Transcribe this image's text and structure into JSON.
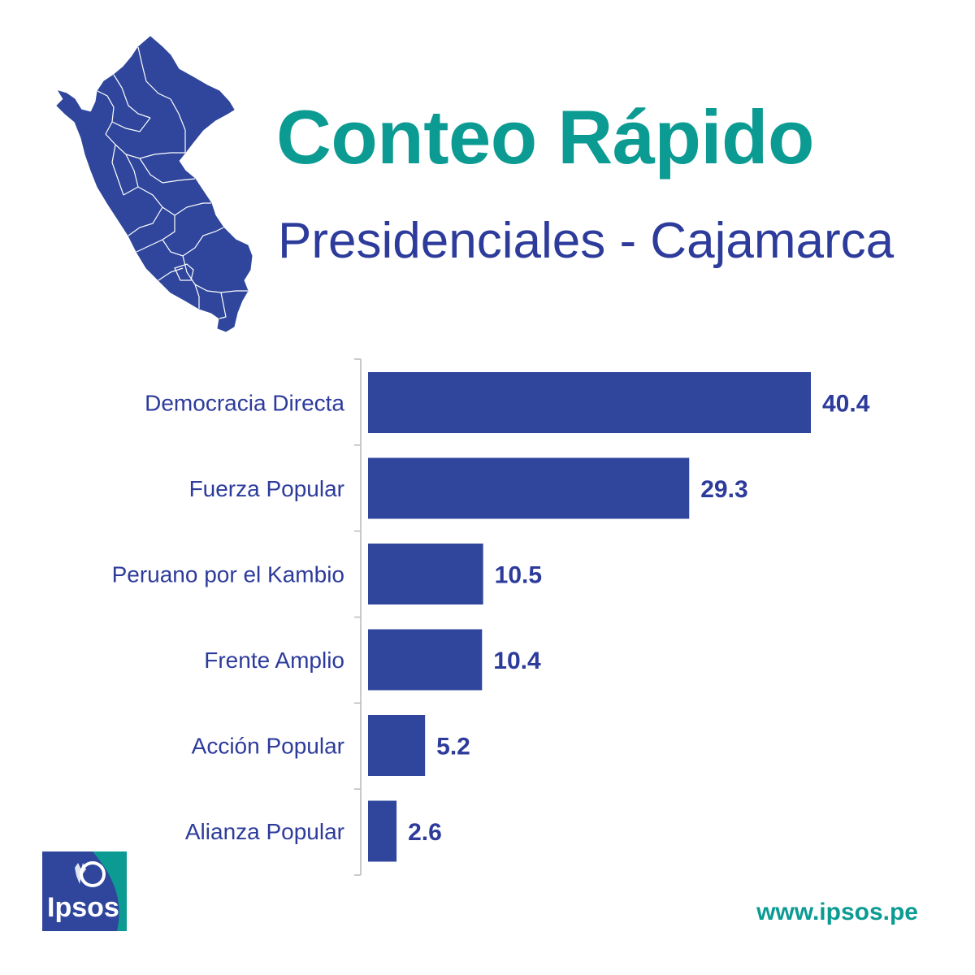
{
  "header": {
    "title": "Conteo Rápido",
    "subtitle": "Presidenciales - Cajamarca"
  },
  "colors": {
    "bar": "#2f469c",
    "title": "#0b9b92",
    "subtitle": "#2d3b9b",
    "label": "#2d3b9b",
    "value": "#2d3b9b",
    "map": "#2f469c",
    "logo_blue": "#2f469c",
    "logo_teal": "#0b9b92"
  },
  "chart_data": {
    "type": "bar",
    "orientation": "horizontal",
    "categories": [
      "Democracia Directa",
      "Fuerza Popular",
      "Peruano por el Kambio",
      "Frente Amplio",
      "Acción Popular",
      "Alianza Popular"
    ],
    "values": [
      40.4,
      29.3,
      10.5,
      10.4,
      5.2,
      2.6
    ],
    "value_labels": [
      "40.4",
      "29.3",
      "10.5",
      "10.4",
      "5.2",
      "2.6"
    ],
    "xlim": [
      0,
      40.4
    ],
    "grid": false,
    "legend": "none"
  },
  "footer": {
    "logo_text": "Ipsos",
    "url": "www.ipsos.pe"
  },
  "icons": {
    "map": "peru-map-icon",
    "logo": "ipsos-logo-icon"
  }
}
